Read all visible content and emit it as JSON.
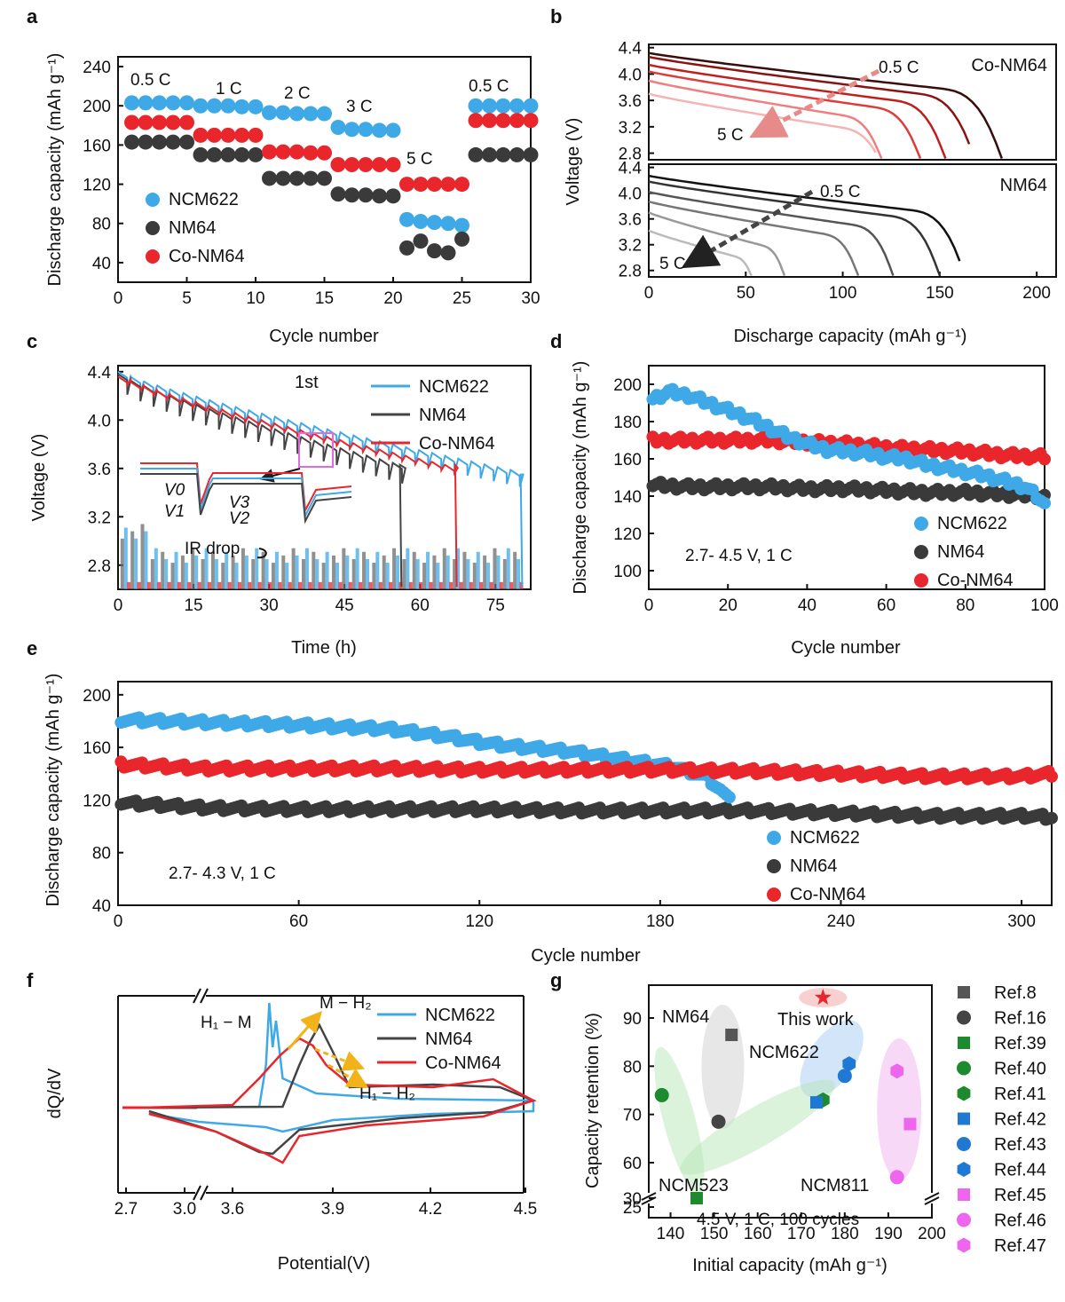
{
  "figure": {
    "panel_labels": [
      "a",
      "b",
      "c",
      "d",
      "e",
      "f",
      "g"
    ]
  },
  "chart_data": [
    {
      "id": "a",
      "type": "scatter",
      "xlabel": "Cycle number",
      "ylabel": "Discharge capacity (mAh g⁻¹)",
      "xlim": [
        0,
        30
      ],
      "ylim": [
        20,
        250
      ],
      "xticks": [
        0,
        5,
        10,
        15,
        20,
        25,
        30
      ],
      "yticks": [
        40,
        80,
        120,
        160,
        200,
        240
      ],
      "rate_labels": [
        "0.5 C",
        "1 C",
        "2 C",
        "3 C",
        "5 C",
        "0.5 C"
      ],
      "series": [
        {
          "name": "NCM622",
          "color": "#3fa9e8",
          "x": [
            1,
            2,
            3,
            4,
            5,
            6,
            7,
            8,
            9,
            10,
            11,
            12,
            13,
            14,
            15,
            16,
            17,
            18,
            19,
            20,
            21,
            22,
            23,
            24,
            25,
            26,
            27,
            28,
            29,
            30
          ],
          "y": [
            203,
            203,
            203,
            203,
            203,
            200,
            200,
            200,
            199,
            199,
            193,
            193,
            192,
            192,
            192,
            178,
            176,
            176,
            175,
            175,
            84,
            82,
            81,
            80,
            78,
            200,
            200,
            200,
            200,
            200
          ]
        },
        {
          "name": "NM64",
          "color": "#3a3a3a",
          "x": [
            1,
            2,
            3,
            4,
            5,
            6,
            7,
            8,
            9,
            10,
            11,
            12,
            13,
            14,
            15,
            16,
            17,
            18,
            19,
            20,
            21,
            22,
            23,
            24,
            25,
            26,
            27,
            28,
            29,
            30
          ],
          "y": [
            163,
            163,
            163,
            163,
            163,
            150,
            150,
            150,
            150,
            150,
            126,
            126,
            126,
            126,
            126,
            110,
            109,
            109,
            108,
            108,
            55,
            62,
            52,
            50,
            64,
            150,
            150,
            150,
            150,
            150
          ]
        },
        {
          "name": "Co-NM64",
          "color": "#e8262c",
          "x": [
            1,
            2,
            3,
            4,
            5,
            6,
            7,
            8,
            9,
            10,
            11,
            12,
            13,
            14,
            15,
            16,
            17,
            18,
            19,
            20,
            21,
            22,
            23,
            24,
            25,
            26,
            27,
            28,
            29,
            30
          ],
          "y": [
            183,
            183,
            183,
            183,
            183,
            170,
            170,
            170,
            170,
            170,
            153,
            153,
            153,
            152,
            152,
            140,
            140,
            140,
            140,
            140,
            120,
            120,
            120,
            120,
            120,
            185,
            185,
            185,
            185,
            185
          ]
        }
      ]
    },
    {
      "id": "b",
      "type": "line",
      "xlabel": "Discharge capacity (mAh g⁻¹)",
      "ylabel": "Voltage (V)",
      "xlim": [
        0,
        210
      ],
      "ylim": [
        2.7,
        4.45
      ],
      "xticks": [
        0,
        50,
        100,
        150,
        200
      ],
      "yticks": [
        2.8,
        3.2,
        3.6,
        4.0,
        4.4
      ],
      "subplots": [
        {
          "name": "Co-NM64",
          "arrow_top": "0.5 C",
          "arrow_bottom": "5 C",
          "colors": [
            "#3a0d0d",
            "#8a1414",
            "#c01e1e",
            "#e03b3b",
            "#f07e7e",
            "#f5b3b3"
          ],
          "curves": [
            {
              "rate": "0.5 C",
              "v0": 4.32,
              "plateau": 3.68,
              "cap": 182
            },
            {
              "rate": "1 C",
              "v0": 4.26,
              "plateau": 3.6,
              "cap": 168
            },
            {
              "rate": "2 C",
              "v0": 4.14,
              "plateau": 3.5,
              "cap": 153
            },
            {
              "rate": "3 C",
              "v0": 4.04,
              "plateau": 3.4,
              "cap": 140
            },
            {
              "rate": "4 C",
              "v0": 3.9,
              "plateau": 3.28,
              "cap": 120
            },
            {
              "rate": "5 C",
              "v0": 3.7,
              "plateau": 3.1,
              "cap": 119
            }
          ]
        },
        {
          "name": "NM64",
          "arrow_top": "0.5 C",
          "arrow_bottom": "5 C",
          "colors": [
            "#111111",
            "#333333",
            "#555555",
            "#777777",
            "#999999",
            "#bbbbbb"
          ],
          "curves": [
            {
              "rate": "0.5 C",
              "v0": 4.27,
              "plateau": 3.64,
              "cap": 163
            },
            {
              "rate": "1 C",
              "v0": 4.18,
              "plateau": 3.55,
              "cap": 150
            },
            {
              "rate": "2 C",
              "v0": 4.02,
              "plateau": 3.42,
              "cap": 126
            },
            {
              "rate": "3 C",
              "v0": 3.87,
              "plateau": 3.28,
              "cap": 108
            },
            {
              "rate": "4 C",
              "v0": 3.7,
              "plateau": 3.1,
              "cap": 70
            },
            {
              "rate": "5 C",
              "v0": 3.42,
              "plateau": 2.95,
              "cap": 53
            }
          ]
        }
      ]
    },
    {
      "id": "c",
      "type": "line",
      "xlabel": "Time (h)",
      "ylabel": "Voltage (V)",
      "xlim": [
        0,
        82
      ],
      "ylim": [
        2.6,
        4.45
      ],
      "xticks": [
        0,
        15,
        30,
        45,
        60,
        75
      ],
      "yticks": [
        2.8,
        3.2,
        3.6,
        4.0,
        4.4
      ],
      "annotations": [
        "1st",
        "IR drop",
        "V0",
        "V1",
        "V2",
        "V3"
      ],
      "series": [
        {
          "name": "NCM622",
          "color": "#3fa9e8",
          "t_end": 80,
          "v_end": 3.55
        },
        {
          "name": "NM64",
          "color": "#444444",
          "t_end": 56,
          "v_end": 3.63
        },
        {
          "name": "Co-NM64",
          "color": "#e8262c",
          "t_end": 67,
          "v_end": 3.63
        }
      ]
    },
    {
      "id": "d",
      "type": "scatter",
      "xlabel": "Cycle number",
      "ylabel": "Discharge capacity (mAh g⁻¹)",
      "xlim": [
        0,
        100
      ],
      "ylim": [
        90,
        210
      ],
      "xticks": [
        0,
        20,
        40,
        60,
        80,
        100
      ],
      "yticks": [
        100,
        120,
        140,
        160,
        180,
        200
      ],
      "condition": "2.7- 4.5 V, 1 C",
      "series": [
        {
          "name": "NCM622",
          "color": "#3fa9e8",
          "x": [
            1,
            5,
            10,
            15,
            20,
            25,
            30,
            35,
            40,
            45,
            50,
            55,
            60,
            65,
            70,
            75,
            80,
            85,
            90,
            95,
            98,
            100
          ],
          "y": [
            192,
            196,
            194,
            190,
            186,
            182,
            177,
            172,
            168,
            165,
            164,
            163,
            161,
            160,
            157,
            155,
            153,
            151,
            148,
            145,
            140,
            135
          ]
        },
        {
          "name": "NM64",
          "color": "#3a3a3a",
          "x": [
            1,
            10,
            20,
            30,
            40,
            50,
            60,
            70,
            80,
            90,
            100
          ],
          "y": [
            146,
            145,
            145,
            145,
            144,
            144,
            143,
            142,
            142,
            141,
            140
          ]
        },
        {
          "name": "Co-NM64",
          "color": "#e8262c",
          "x": [
            1,
            10,
            20,
            30,
            40,
            50,
            60,
            70,
            80,
            90,
            100
          ],
          "y": [
            170,
            170,
            170,
            170,
            169,
            168,
            166,
            165,
            164,
            162,
            161
          ]
        }
      ]
    },
    {
      "id": "e",
      "type": "scatter",
      "xlabel": "Cycle number",
      "ylabel": "Discharge capacity (mAh g⁻¹)",
      "xlim": [
        0,
        310
      ],
      "ylim": [
        40,
        210
      ],
      "xticks": [
        0,
        60,
        120,
        180,
        240,
        300
      ],
      "yticks": [
        40,
        80,
        120,
        160,
        200
      ],
      "condition": "2.7- 4.3 V, 1 C",
      "series": [
        {
          "name": "NCM622",
          "color": "#3fa9e8",
          "x": [
            1,
            30,
            60,
            90,
            110,
            120,
            130,
            150,
            170,
            185,
            195,
            200,
            203
          ],
          "y": [
            181,
            179,
            177,
            174,
            168,
            164,
            161,
            157,
            150,
            145,
            138,
            128,
            120
          ]
        },
        {
          "name": "NM64",
          "color": "#3a3a3a",
          "x": [
            1,
            30,
            60,
            90,
            120,
            150,
            180,
            210,
            240,
            270,
            300,
            310
          ],
          "y": [
            118,
            114,
            113,
            113,
            113,
            112,
            112,
            112,
            110,
            108,
            108,
            107
          ]
        },
        {
          "name": "Co-NM64",
          "color": "#e8262c",
          "x": [
            1,
            30,
            60,
            90,
            120,
            150,
            180,
            210,
            240,
            270,
            300,
            310
          ],
          "y": [
            147,
            144,
            144,
            144,
            143,
            143,
            143,
            142,
            140,
            138,
            138,
            140
          ]
        }
      ]
    },
    {
      "id": "f",
      "type": "line",
      "xlabel": "Potential(V)",
      "ylabel": "dQ/dV",
      "xticks": [
        2.7,
        3.0,
        3.6,
        3.9,
        4.2,
        4.5
      ],
      "annotations": [
        "H₁ − M",
        "M − H₂",
        "H₁ − H₂"
      ],
      "series": [
        {
          "name": "NCM622",
          "color": "#3fa9e8"
        },
        {
          "name": "NM64",
          "color": "#444444"
        },
        {
          "name": "Co-NM64",
          "color": "#e8262c"
        }
      ]
    },
    {
      "id": "g",
      "type": "scatter",
      "xlabel": "Initial capacity (mAh g⁻¹)",
      "ylabel": "Capacity retention (%)",
      "xlim": [
        135,
        200
      ],
      "xticks": [
        140,
        150,
        160,
        170,
        180,
        190,
        200
      ],
      "yticks": [
        25,
        30,
        60,
        70,
        80,
        90
      ],
      "condition": "4.5 V, 1 C, 100 cycles",
      "groups": [
        "NM64",
        "NCM622",
        "NCM523",
        "NCM811",
        "This work"
      ],
      "this_work": {
        "x": 175,
        "y": 92
      },
      "points": [
        {
          "ref": "Ref.8",
          "marker": "square",
          "color": "#555555",
          "x": 154,
          "y": 86.5
        },
        {
          "ref": "Ref.16",
          "marker": "circle",
          "color": "#444444",
          "x": 151,
          "y": 68.5
        },
        {
          "ref": "Ref.39",
          "marker": "square",
          "color": "#1e8a2e",
          "x": 146,
          "y": 30
        },
        {
          "ref": "Ref.40",
          "marker": "circle",
          "color": "#1e8a2e",
          "x": 138,
          "y": 74
        },
        {
          "ref": "Ref.41",
          "marker": "hexagon",
          "color": "#1e8a2e",
          "x": 175,
          "y": 73
        },
        {
          "ref": "Ref.42",
          "marker": "square",
          "color": "#1f78d4",
          "x": 173.5,
          "y": 72.5
        },
        {
          "ref": "Ref.43",
          "marker": "circle",
          "color": "#1f78d4",
          "x": 180,
          "y": 78
        },
        {
          "ref": "Ref.44",
          "marker": "hexagon",
          "color": "#1f78d4",
          "x": 181,
          "y": 80.5
        },
        {
          "ref": "Ref.45",
          "marker": "square",
          "color": "#ee66ee",
          "x": 195,
          "y": 68
        },
        {
          "ref": "Ref.46",
          "marker": "circle",
          "color": "#ee66ee",
          "x": 192,
          "y": 57
        },
        {
          "ref": "Ref.47",
          "marker": "hexagon",
          "color": "#ee66ee",
          "x": 192,
          "y": 79
        }
      ]
    }
  ]
}
